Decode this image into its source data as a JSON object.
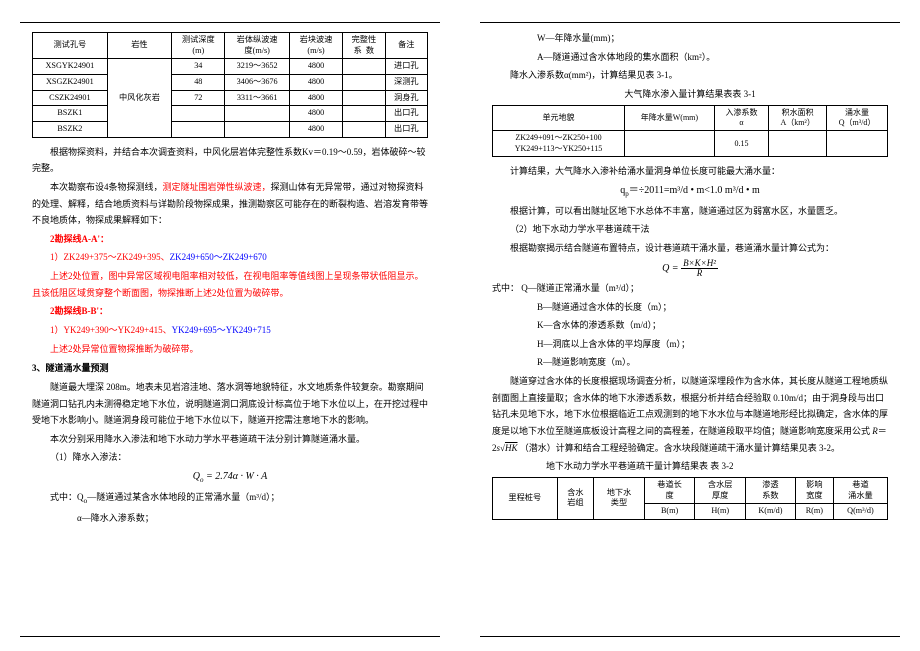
{
  "left": {
    "t1": {
      "headers": [
        "测试孔号",
        "岩性",
        "测试深度\n(m)",
        "岩体纵波速\n度(m/s)",
        "岩块波速\n(m/s)",
        "完整性\n系  数",
        "备注"
      ],
      "rows": [
        [
          "XSGYK24901",
          "",
          "34",
          "3219～3652",
          "4800",
          "",
          "进口孔"
        ],
        [
          "XSGZK24901",
          "",
          "48",
          "3406～3676",
          "4800",
          "",
          "深测孔"
        ],
        [
          "CSZK24901",
          "中风化灰岩",
          "72",
          "3311～3661",
          "4800",
          "",
          "洞身孔"
        ],
        [
          "BSZK1",
          "",
          "",
          "",
          "4800",
          "",
          "出口孔"
        ],
        [
          "BSZK2",
          "",
          "",
          "",
          "4800",
          "",
          "出口孔"
        ]
      ]
    },
    "p_after_t1": "根据物探资料，并结合本次调查资料，中风化层岩体完整性系数Kv＝0.19～0.59，岩体破碎～较完整。",
    "p_survey1": "本次勘察布设4条物探测线，",
    "p_survey1_red": "测定隧址围岩弹性纵波速，",
    "p_survey1b": "探测山体有无异常带，通过对物探资料的处理、解释，结合地质资料与详勘阶段物探成果，推测勘察区可能存在的断裂构造、岩溶发育带等不良地质体，物探成果解释如下：",
    "line_a_head": "2勘探线A-A'：",
    "line_a_seg": "1）ZK249+375～ZK249+395、",
    "line_a_blue": "ZK249+650～ZK249+670",
    "line_a_p": "上述2处位置，图中异常区域视电阻率相对较低，在视电阻率等值线图上呈现条带状低阻显示。且该低阻区域贯穿整个断面图，物探推断上述2处位置为破碎带。",
    "line_b_head": "2勘探线B-B'：",
    "line_b_seg": "1）YK249+390～YK249+415、",
    "line_b_blue": "YK249+695～YK249+715",
    "line_b_p": "上述2处异常位置物探推断为破碎带。",
    "sect3": "3、隧道涌水量预测",
    "p3a": "隧道最大埋深 208m。地表未见岩溶洼地、落水洞等地貌特征，水文地质条件较复杂。勘察期间隧道洞口钻孔内未测得稳定地下水位，说明隧道洞口洞底设计标高位于地下水位以上，在开挖过程中受地下水影响小。隧道洞身段可能位于地下水位以下，隧道开挖需注意地下水的影响。",
    "p3b": "本次分别采用降水入渗法和地下水动力学水平巷道疏干法分别计算隧道涌水量。",
    "m1": "（1）降水入渗法：",
    "formula1": "Q<sub>o</sub> = 2.74α · W · A",
    "f1_exp1": "式中：Q<sub>o</sub>—隧道通过某含水体地段的正常涌水量（m³/d）；",
    "f1_exp2": "α—降水入渗系数；"
  },
  "right": {
    "exp_w": "W—年降水量(mm)；",
    "exp_a": "A—隧道通过含水体地段的集水面积（km²）。",
    "p_alpha": "降水入渗系数α(mm²)，计算结果见表 3-1。",
    "t31_cap": "大气降水渗入量计算结果表表 3-1",
    "t31": {
      "headers": [
        "单元地貌",
        "年降水量W(mm)",
        "入渗系数\nα",
        "积水面积\nA（km²）",
        "涌水量\nQ（m³/d）"
      ],
      "row": [
        "ZK249+091～ZK250+100\nYK249+113～YK250+115",
        "",
        "0.15",
        "",
        ""
      ]
    },
    "p_calc": "计算结果，大气降水入渗补给涌水量洞身单位长度可能最大涌水量：",
    "formula_qp": "q<sub>p</sub>＝÷2011=m³/d • m<1.0 m³/d • m",
    "p_calc2": "根据计算，可以看出隧址区地下水总体不丰富，隧道通过区为弱富水区，水量匮乏。",
    "m2": "（2）地下水动力学水平巷道疏干法",
    "p_m2": "根据勘察揭示结合隧道布置特点，设计巷道疏干涌水量，巷道涌水量计算公式为：",
    "formula2_left": "Q =",
    "formula2_num": "B×K×H²",
    "formula2_den": "R",
    "exp_list": [
      "式中：  Q—隧道正常涌水量（m³/d）；",
      "B—隧道通过含水体的长度（m）；",
      "K—含水体的渗透系数（m/d）；",
      "H—洞底以上含水体的平均厚度（m）；",
      "R—隧道影响宽度（m）。"
    ],
    "p_long": "隧道穿过含水体的长度根据现场调查分析，以隧道深埋段作为含水体，其长度从隧道工程地质纵剖面图上直接量取；含水体的地下水渗透系数，根据分析并结合经验取 0.10m/d；由于洞身段与出口钻孔未见地下水，地下水位根据临近工点观测到的地下水水位与本隧道地形经比拟确定，含水体的厚度是以地下水位至隧道底板设计高程之间的高程差，在隧道段取平均值；隧道影响宽度采用公式 R＝2s√HK （潜水）计算和结合工程经验确定。含水块段隧道疏干涌水量计算结果见表 3-2。",
    "t32_cap": "地下水动力学水平巷道疏干量计算结果表                表 3-2",
    "t32": {
      "headers": [
        "里程桩号",
        "含水\n岩组",
        "地下水\n类型",
        "巷道长\n度\nB(m)",
        "含水层\n厚度\nH(m)",
        "渗透\n系数\nK(m/d)",
        "影响\n宽度\nR(m)",
        "巷道\n涌水量\nQ(m³/d)"
      ]
    }
  }
}
